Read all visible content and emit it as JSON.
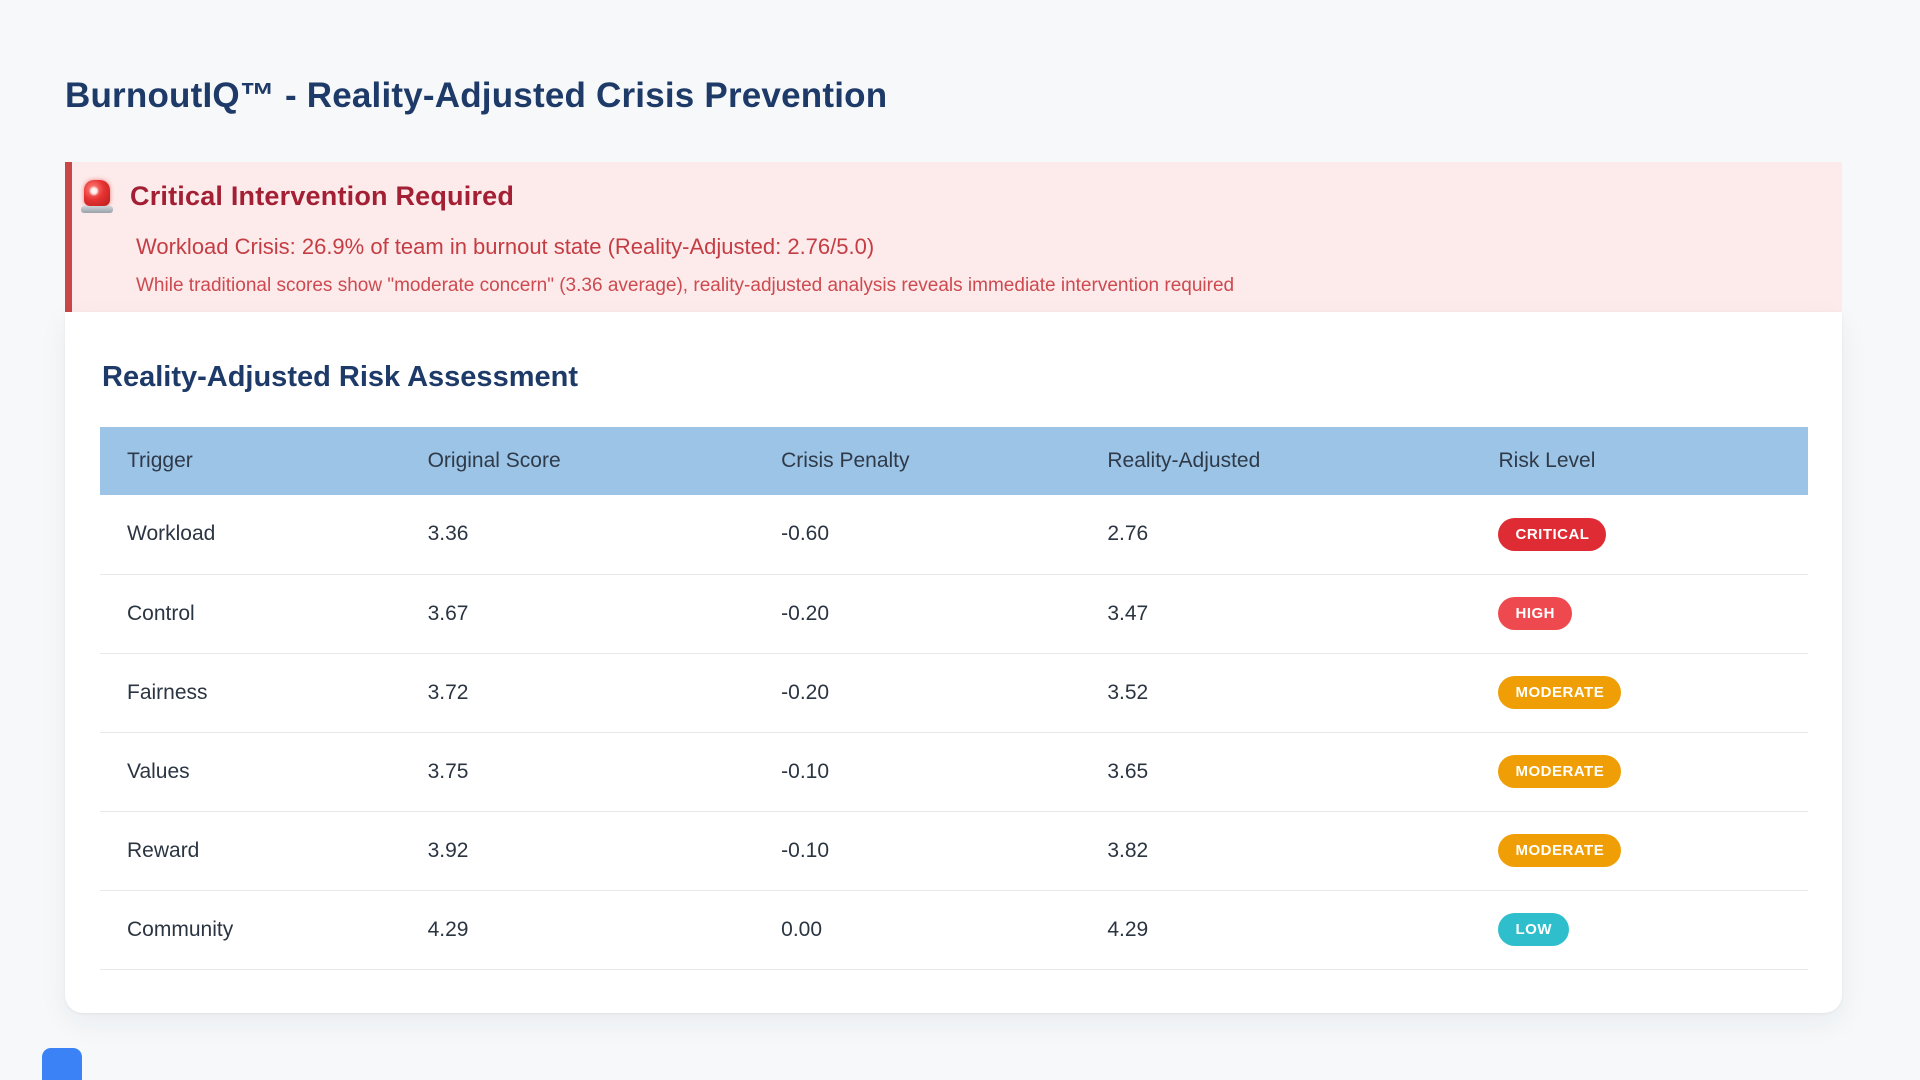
{
  "page": {
    "title": "BurnoutIQ™ - Reality-Adjusted Crisis Prevention"
  },
  "alert": {
    "icon": "siren-light-icon",
    "title": "Critical Intervention Required",
    "message_primary": "Workload Crisis: 26.9% of team in burnout state (Reality-Adjusted: 2.76/5.0)",
    "message_secondary": "While traditional scores show \"moderate concern\" (3.36 average), reality-adjusted analysis reveals immediate intervention required"
  },
  "assessment": {
    "heading": "Reality-Adjusted Risk Assessment",
    "table": {
      "columns": [
        "Trigger",
        "Original Score",
        "Crisis Penalty",
        "Reality-Adjusted",
        "Risk Level"
      ],
      "rows": [
        {
          "trigger": "Workload",
          "original": "3.36",
          "penalty": "-0.60",
          "adjusted": "2.76",
          "risk": "CRITICAL",
          "risk_color": "#df2b33"
        },
        {
          "trigger": "Control",
          "original": "3.67",
          "penalty": "-0.20",
          "adjusted": "3.47",
          "risk": "HIGH",
          "risk_color": "#ef4950"
        },
        {
          "trigger": "Fairness",
          "original": "3.72",
          "penalty": "-0.20",
          "adjusted": "3.52",
          "risk": "MODERATE",
          "risk_color": "#f09e06"
        },
        {
          "trigger": "Values",
          "original": "3.75",
          "penalty": "-0.10",
          "adjusted": "3.65",
          "risk": "MODERATE",
          "risk_color": "#f09e06"
        },
        {
          "trigger": "Reward",
          "original": "3.92",
          "penalty": "-0.10",
          "adjusted": "3.82",
          "risk": "MODERATE",
          "risk_color": "#f09e06"
        },
        {
          "trigger": "Community",
          "original": "4.29",
          "penalty": "0.00",
          "adjusted": "4.29",
          "risk": "LOW",
          "risk_color": "#2fbfcc"
        }
      ]
    }
  },
  "colors": {
    "page_background": "#f6f8f9",
    "heading_navy": "#1e3a68",
    "alert_background": "#fdeaea",
    "alert_border": "#c94747",
    "alert_title_red": "#a31f34",
    "alert_text_red": "#c43d44",
    "table_header_blue": "#9cc4e6",
    "floating_button_blue": "#3b82f6"
  }
}
